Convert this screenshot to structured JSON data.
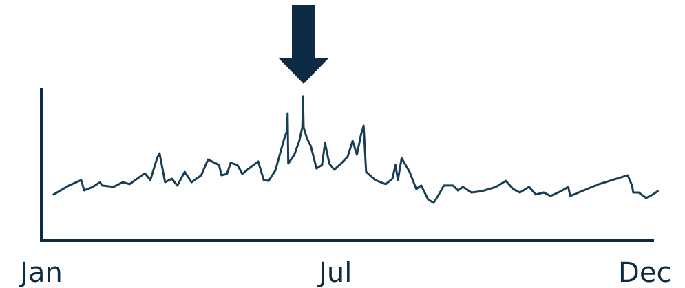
{
  "chart_data": {
    "type": "line",
    "color": "#163f55",
    "x": [
      2.0,
      4.5,
      6.5,
      7.0,
      8.4,
      9.6,
      9.9,
      11.8,
      13.3,
      14.4,
      16.9,
      17.8,
      18.9,
      19.3,
      20.2,
      21.3,
      22.2,
      23.4,
      24.5,
      26.1,
      27.2,
      29.0,
      29.4,
      30.3,
      30.9,
      32.0,
      32.8,
      33.9,
      35.4,
      36.3,
      37.1,
      38.2,
      39.6,
      40.1,
      40.2,
      40.3,
      41.3,
      42.1,
      42.6,
      42.7,
      42.8,
      43.3,
      44.0,
      44.9,
      45.8,
      46.3,
      47.0,
      47.8,
      48.9,
      50.0,
      50.8,
      51.5,
      52.2,
      52.6,
      53.0,
      54.5,
      56.2,
      57.3,
      57.8,
      58.2,
      58.8,
      60.1,
      61.2,
      62.0,
      63.1,
      64.0,
      64.6,
      65.7,
      67.2,
      68.0,
      68.8,
      70.2,
      71.9,
      74.2,
      75.8,
      77.0,
      78.1,
      79.6,
      80.7,
      82.0,
      83.1,
      84.8,
      86.0,
      86.3,
      88.2,
      91.0,
      95.7,
      96.4,
      96.6,
      97.5,
      98.7,
      99.8,
      100.6
    ],
    "values": [
      30.5,
      36.4,
      40,
      33.2,
      35.5,
      38.6,
      36.4,
      35.5,
      38.6,
      37.3,
      44.5,
      40,
      54.5,
      57.7,
      38.6,
      40.9,
      36.4,
      45.5,
      38.6,
      43.2,
      53.6,
      50,
      43.2,
      44.1,
      51.4,
      50,
      44.1,
      47.7,
      52.3,
      40,
      39.5,
      46.4,
      66.8,
      72.7,
      84.1,
      50.9,
      56.8,
      65.9,
      75,
      95.5,
      75,
      68.2,
      62.3,
      47.7,
      50,
      64.5,
      50.9,
      46.8,
      50.9,
      55.5,
      65.9,
      56.8,
      70.5,
      75.9,
      45.5,
      40,
      37.3,
      40.9,
      50,
      40,
      54.5,
      45.5,
      34.1,
      36.4,
      27.3,
      25,
      28.6,
      36.4,
      36.4,
      33.2,
      35.5,
      31.8,
      32.7,
      35.5,
      39.5,
      34.1,
      31.8,
      35.5,
      30.5,
      31.8,
      29.5,
      32.7,
      35.5,
      29.5,
      32.7,
      37.3,
      43.2,
      36.4,
      31.8,
      31.8,
      28.2,
      30.5,
      32.7
    ],
    "xlim": [
      0,
      101
    ],
    "ylim": [
      0,
      100
    ],
    "xticks": [
      {
        "value": 0,
        "label": "Jan"
      },
      {
        "value": 48,
        "label": "Jul"
      },
      {
        "value": 98.5,
        "label": "Dec"
      }
    ]
  }
}
